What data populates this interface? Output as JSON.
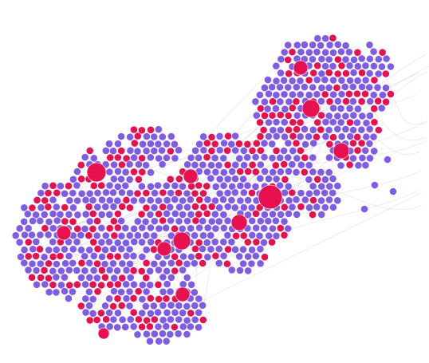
{
  "graph": {
    "background_color": "#ffffff",
    "edge_color": "#c9c9c9",
    "node_colors": {
      "small_node": "#7f5ce6",
      "hub_node": "#e8114f"
    },
    "hub_fraction": 0.28,
    "large_hub_count": 12
  }
}
